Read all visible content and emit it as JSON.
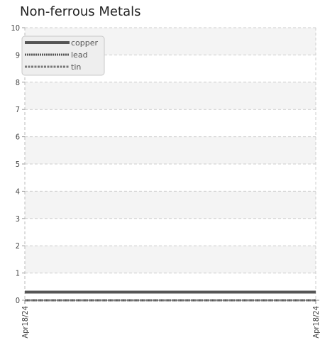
{
  "chart_data": {
    "type": "line",
    "title": "Non-ferrous Metals",
    "xlabel": "",
    "ylabel": "",
    "categories": [
      "Apr18/24",
      "Apr18/24"
    ],
    "ylim": [
      0,
      10
    ],
    "yticks": [
      0,
      1,
      2,
      3,
      4,
      5,
      6,
      7,
      8,
      9,
      10
    ],
    "grid": true,
    "legend_position": "top-left",
    "series": [
      {
        "name": "copper",
        "values": [
          0.3,
          0.3
        ],
        "color": "#555555",
        "style": "solid"
      },
      {
        "name": "lead",
        "values": [
          0.0,
          0.0
        ],
        "color": "#555555",
        "style": "dotted"
      },
      {
        "name": "tin",
        "values": [
          0.0,
          0.0
        ],
        "color": "#777777",
        "style": "dashed"
      }
    ]
  }
}
